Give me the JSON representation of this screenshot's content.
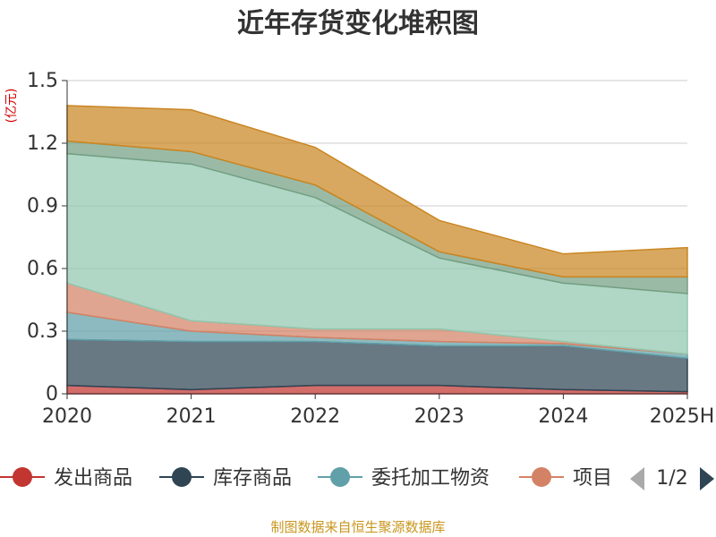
{
  "chart_data": {
    "type": "area",
    "stacked": true,
    "title": "近年存货变化堆积图",
    "unit_label": "(亿元)",
    "x": [
      "2020",
      "2021",
      "2022",
      "2023",
      "2024",
      "2025H"
    ],
    "ylim": [
      0,
      1.5
    ],
    "yticks": [
      "0",
      "0.3",
      "0.6",
      "0.9",
      "1.2",
      "1.5"
    ],
    "grid": true,
    "legend_position": "bottom",
    "legend_page": "1/2",
    "series": [
      {
        "name": "发出商品",
        "color": "#c23531",
        "values": [
          0.04,
          0.02,
          0.04,
          0.04,
          0.02,
          0.01
        ]
      },
      {
        "name": "库存商品",
        "color": "#2f4554",
        "values": [
          0.22,
          0.23,
          0.21,
          0.19,
          0.21,
          0.16
        ]
      },
      {
        "name": "委托加工物资",
        "color": "#61a0a8",
        "values": [
          0.13,
          0.05,
          0.02,
          0.02,
          0.01,
          0.02
        ]
      },
      {
        "name": "项目",
        "color": "#d48265",
        "values": [
          0.14,
          0.05,
          0.04,
          0.06,
          0.01,
          0.0
        ]
      },
      {
        "color": "#91c7ae",
        "values": [
          0.62,
          0.75,
          0.63,
          0.34,
          0.28,
          0.29
        ]
      },
      {
        "color": "#749f83",
        "values": [
          0.06,
          0.06,
          0.06,
          0.03,
          0.03,
          0.08
        ]
      },
      {
        "color": "#ca8622",
        "values": [
          0.17,
          0.2,
          0.18,
          0.15,
          0.11,
          0.14
        ]
      }
    ],
    "footer": "制图数据来自恒生聚源数据库"
  }
}
